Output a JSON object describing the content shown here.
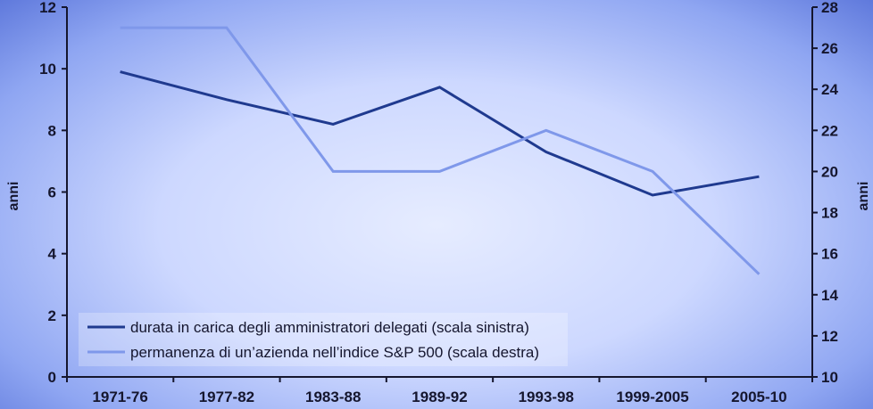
{
  "chart_data": {
    "type": "line",
    "categories": [
      "1971-76",
      "1977-82",
      "1983-88",
      "1989-92",
      "1993-98",
      "1999-2005",
      "2005-10"
    ],
    "ylabel_left": "anni",
    "ylabel_right": "anni",
    "ylim_left": [
      0,
      12
    ],
    "ylim_right": [
      10,
      28
    ],
    "yticks_left": [
      0,
      2,
      4,
      6,
      8,
      10,
      12
    ],
    "yticks_right": [
      10,
      12,
      14,
      16,
      18,
      20,
      22,
      24,
      26,
      28
    ],
    "grid": false,
    "legend_position": "bottom-left",
    "series": [
      {
        "name": "durata in carica degli amministratori delegati (scala sinistra)",
        "axis": "left",
        "color": "#1f3a8f",
        "values": [
          9.9,
          9.0,
          8.2,
          9.4,
          7.3,
          5.9,
          6.5
        ]
      },
      {
        "name": "permanenza di un’azienda nell’indice S&P 500 (scala destra)",
        "axis": "right",
        "color": "#7f98ea",
        "values": [
          27,
          27,
          20,
          20,
          22,
          20,
          15
        ]
      }
    ]
  }
}
